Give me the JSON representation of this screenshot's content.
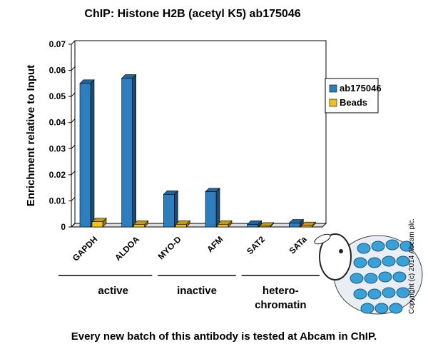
{
  "chart_data": {
    "type": "bar",
    "title": "ChIP:  Histone H2B (acetyl K5) ab175046",
    "y_label": "Enrichment relative to Input",
    "categories": [
      "GAPDH",
      "ALDOA",
      "MYO-D",
      "AFM",
      "SAT2",
      "SATa"
    ],
    "series": [
      {
        "name": "ab175046",
        "color": "#2e7ebf",
        "values": [
          0.055,
          0.057,
          0.0125,
          0.0135,
          0.001,
          0.0015
        ]
      },
      {
        "name": "Beads",
        "color": "#f2c21b",
        "values": [
          0.002,
          0.001,
          0.001,
          0.001,
          0.0003,
          0.0005
        ]
      }
    ],
    "group_labels": [
      [
        "active"
      ],
      [
        "inactive"
      ],
      [
        "hetero-",
        "chromatin"
      ]
    ],
    "ylim": [
      0,
      0.07
    ],
    "yticks": [
      0,
      0.01,
      0.02,
      0.03,
      0.04,
      0.05,
      0.06,
      0.07
    ],
    "legend": "right",
    "footer": "Every new batch of this antibody is tested at Abcam in ChIP.",
    "copyright": "Copyright (c) 2014 Abcam plc."
  }
}
